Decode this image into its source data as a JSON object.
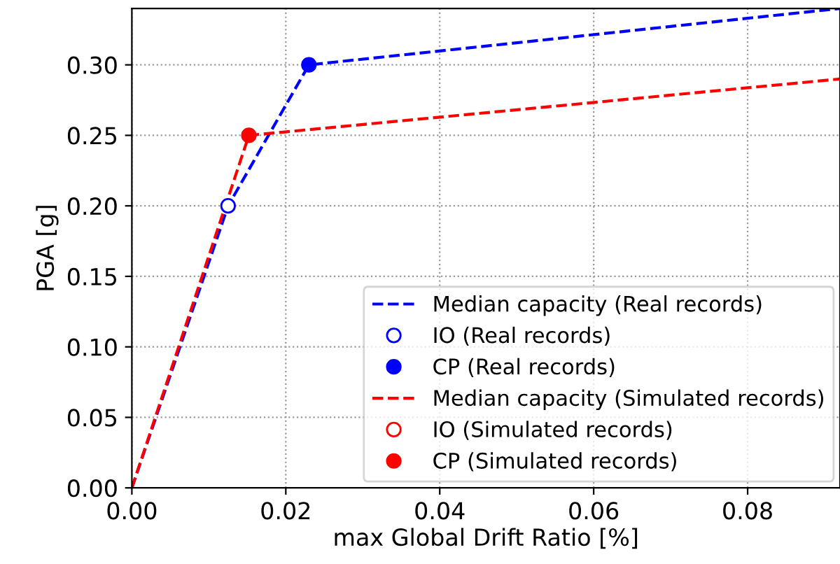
{
  "chart_data": {
    "type": "line",
    "xlabel": "max Global Drift Ratio [%]",
    "ylabel": "PGA [g]",
    "xlim": [
      0,
      0.092
    ],
    "ylim": [
      0,
      0.34
    ],
    "xticks": [
      {
        "value": 0,
        "label": "0.00"
      },
      {
        "value": 0.02,
        "label": "0.02"
      },
      {
        "value": 0.04,
        "label": "0.04"
      },
      {
        "value": 0.06,
        "label": "0.06"
      },
      {
        "value": 0.08,
        "label": "0.08"
      }
    ],
    "yticks": [
      {
        "value": 0,
        "label": "0.00"
      },
      {
        "value": 0.05,
        "label": "0.05"
      },
      {
        "value": 0.1,
        "label": "0.10"
      },
      {
        "value": 0.15,
        "label": "0.15"
      },
      {
        "value": 0.2,
        "label": "0.20"
      },
      {
        "value": 0.25,
        "label": "0.25"
      },
      {
        "value": 0.3,
        "label": "0.30"
      }
    ],
    "grid": true,
    "legend": "bottom right",
    "series": [
      {
        "name": "Median capacity (Real records)",
        "color": "#0000ff",
        "line_style": "dashed",
        "marker": "none",
        "x": [
          0,
          0.0125,
          0.023,
          0.092
        ],
        "values": [
          0,
          0.2,
          0.3,
          0.34
        ]
      },
      {
        "name": "IO (Real records)",
        "type": "scatter",
        "color": "#0000ff",
        "marker": "circle",
        "colors": [
          "#ffffff"
        ],
        "x": [
          0.0125
        ],
        "values": [
          0.2
        ]
      },
      {
        "name": "CP (Real records)",
        "type": "scatter",
        "color": "#0000ff",
        "marker": "circle",
        "x": [
          0.023
        ],
        "values": [
          0.3
        ]
      },
      {
        "name": "Median capacity (Simulated records)",
        "color": "#ff0000",
        "line_style": "dashed",
        "marker": "none",
        "x": [
          0,
          0.0152,
          0.092
        ],
        "values": [
          0,
          0.25,
          0.29
        ]
      },
      {
        "name": "IO (Simulated records)",
        "type": "scatter",
        "color": "#ff0000",
        "marker": "circle",
        "colors": [
          "#ffffff"
        ],
        "x": [
          null
        ],
        "values": [
          null
        ]
      },
      {
        "name": "CP (Simulated records)",
        "type": "scatter",
        "color": "#ff0000",
        "marker": "circle",
        "x": [
          0.0152
        ],
        "values": [
          0.25
        ]
      }
    ]
  }
}
